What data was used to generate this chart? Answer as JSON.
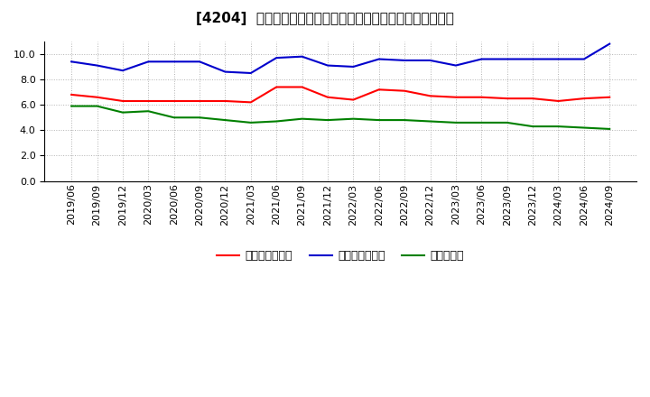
{
  "title": "[4204]  売上債権回転率、買入債務回転率、在庫回転率の推移",
  "dates": [
    "2019/06",
    "2019/09",
    "2019/12",
    "2020/03",
    "2020/06",
    "2020/09",
    "2020/12",
    "2021/03",
    "2021/06",
    "2021/09",
    "2021/12",
    "2022/03",
    "2022/06",
    "2022/09",
    "2022/12",
    "2023/03",
    "2023/06",
    "2023/09",
    "2023/12",
    "2024/03",
    "2024/06",
    "2024/09"
  ],
  "receivables_turnover": [
    6.8,
    6.6,
    6.3,
    6.3,
    6.3,
    6.3,
    6.3,
    6.2,
    7.4,
    7.4,
    6.6,
    6.4,
    7.2,
    7.1,
    6.7,
    6.6,
    6.6,
    6.5,
    6.5,
    6.3,
    6.5,
    6.6
  ],
  "payables_turnover": [
    9.4,
    9.1,
    8.7,
    9.4,
    9.4,
    9.4,
    8.6,
    8.5,
    9.7,
    9.8,
    9.1,
    9.0,
    9.6,
    9.5,
    9.5,
    9.1,
    9.6,
    9.6,
    9.6,
    9.6,
    9.6,
    10.8
  ],
  "inventory_turnover": [
    5.9,
    5.9,
    5.4,
    5.5,
    5.0,
    5.0,
    4.8,
    4.6,
    4.7,
    4.9,
    4.8,
    4.9,
    4.8,
    4.8,
    4.7,
    4.6,
    4.6,
    4.6,
    4.3,
    4.3,
    4.2,
    4.1
  ],
  "line_colors": {
    "receivables": "#ff0000",
    "payables": "#0000cc",
    "inventory": "#008000"
  },
  "legend_labels": [
    "売上債権回転率",
    "買入債務回転率",
    "在庫回転率"
  ],
  "ylim": [
    0.0,
    11.0
  ],
  "yticks": [
    0.0,
    2.0,
    4.0,
    6.0,
    8.0,
    10.0
  ],
  "background_color": "#ffffff",
  "plot_bg_color": "#ffffff",
  "grid_color": "#aaaaaa",
  "title_fontsize": 11,
  "legend_fontsize": 9,
  "tick_fontsize": 8
}
